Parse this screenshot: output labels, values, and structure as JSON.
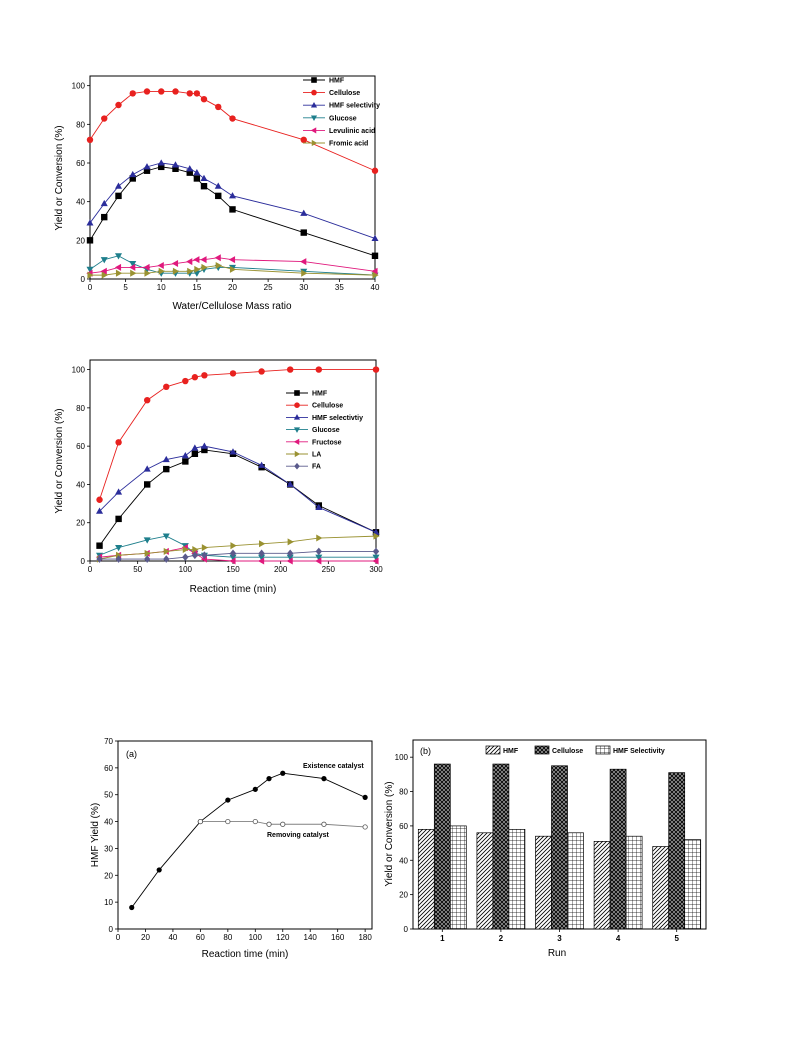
{
  "colors": {
    "HMF": "#000000",
    "Cellulose": "#e8211f",
    "HMF selectivity": "#2b2d9b",
    "Glucose": "#1e7f8c",
    "Levulinic acid": "#e0197d",
    "Fructose": "#e0197d",
    "Fromic acid": "#9a9232",
    "LA": "#9a9232",
    "FA": "#5a5a8c",
    "Removing catalyst": "#808080"
  },
  "chart_data": [
    {
      "type": "line",
      "xlabel": "Water/Cellulose Mass ratio",
      "ylabel": "Yield or Conversion (%)",
      "xlim": [
        0,
        40
      ],
      "ylim": [
        0,
        105
      ],
      "xticks": [
        "0",
        "5",
        "10",
        "15",
        "20",
        "25",
        "30",
        "35",
        "40"
      ],
      "yticks": [
        "0",
        "20",
        "40",
        "60",
        "80",
        "100"
      ],
      "legend_position": "top-right",
      "x": [
        0,
        2,
        4,
        6,
        8,
        10,
        12,
        14,
        15,
        16,
        18,
        20,
        30,
        40
      ],
      "series": [
        {
          "name": "HMF",
          "marker": "square",
          "values": [
            20,
            32,
            43,
            52,
            56,
            58,
            57,
            55,
            52,
            48,
            43,
            36,
            24,
            12
          ]
        },
        {
          "name": "Cellulose",
          "marker": "circle",
          "values": [
            72,
            83,
            90,
            96,
            97,
            97,
            97,
            96,
            96,
            93,
            89,
            83,
            72,
            56
          ]
        },
        {
          "name": "HMF selectivity",
          "marker": "triangle-up",
          "values": [
            29,
            39,
            48,
            54,
            58,
            60,
            59,
            57,
            55,
            52,
            48,
            43,
            34,
            21
          ]
        },
        {
          "name": "Glucose",
          "marker": "triangle-down",
          "values": [
            5,
            10,
            12,
            8,
            5,
            3,
            3,
            3,
            3,
            5,
            6,
            6,
            4,
            2
          ]
        },
        {
          "name": "Levulinic acid",
          "marker": "triangle-left",
          "values": [
            3,
            4,
            6,
            6,
            6,
            7,
            8,
            9,
            10,
            10,
            11,
            10,
            9,
            4
          ]
        },
        {
          "name": "Fromic acid",
          "marker": "triangle-right",
          "values": [
            2,
            2,
            3,
            3,
            3,
            4,
            4,
            4,
            5,
            6,
            7,
            5,
            3,
            2
          ]
        }
      ]
    },
    {
      "type": "line",
      "xlabel": "Reaction time (min)",
      "ylabel": "Yield or Conversion (%)",
      "xlim": [
        0,
        300
      ],
      "ylim": [
        0,
        105
      ],
      "xticks": [
        "0",
        "50",
        "100",
        "150",
        "200",
        "250",
        "300"
      ],
      "yticks": [
        "0",
        "20",
        "40",
        "60",
        "80",
        "100"
      ],
      "legend_position": "right",
      "x": [
        10,
        30,
        60,
        80,
        100,
        110,
        120,
        150,
        180,
        210,
        240,
        300
      ],
      "series": [
        {
          "name": "HMF",
          "marker": "square",
          "values": [
            8,
            22,
            40,
            48,
            52,
            56,
            58,
            56,
            49,
            40,
            29,
            15
          ]
        },
        {
          "name": "Cellulose",
          "marker": "circle",
          "values": [
            32,
            62,
            84,
            91,
            94,
            96,
            97,
            98,
            99,
            100,
            100,
            100
          ]
        },
        {
          "name": "HMF selectivtiy",
          "marker": "triangle-up",
          "values": [
            26,
            36,
            48,
            53,
            55,
            59,
            60,
            57,
            50,
            40,
            28,
            15
          ]
        },
        {
          "name": "Glucose",
          "marker": "triangle-down",
          "values": [
            3,
            7,
            11,
            13,
            8,
            4,
            3,
            2,
            2,
            2,
            2,
            2
          ]
        },
        {
          "name": "Fructose",
          "marker": "triangle-left",
          "values": [
            2,
            3,
            4,
            5,
            7,
            4,
            1,
            0,
            0,
            0,
            0,
            0
          ]
        },
        {
          "name": "LA",
          "marker": "triangle-right",
          "values": [
            1,
            3,
            4,
            5,
            6,
            6,
            7,
            8,
            9,
            10,
            12,
            13
          ]
        },
        {
          "name": "FA",
          "marker": "diamond",
          "values": [
            1,
            1,
            1,
            1,
            2,
            3,
            3,
            4,
            4,
            4,
            5,
            5
          ]
        }
      ]
    },
    {
      "type": "line",
      "panel_label": "(a)",
      "xlabel": "Reaction time (min)",
      "ylabel": "HMF Yield (%)",
      "xlim": [
        0,
        185
      ],
      "ylim": [
        0,
        70
      ],
      "xticks": [
        "0",
        "20",
        "40",
        "60",
        "80",
        "100",
        "120",
        "140",
        "160",
        "180"
      ],
      "yticks": [
        "0",
        "10",
        "20",
        "30",
        "40",
        "50",
        "60",
        "70"
      ],
      "series": [
        {
          "name": "Existence catalyst",
          "marker": "filled-circle",
          "x": [
            10,
            30,
            60,
            80,
            100,
            110,
            120,
            150,
            180
          ],
          "values": [
            8,
            22,
            40,
            48,
            52,
            56,
            58,
            56,
            49
          ]
        },
        {
          "name": "Removing catalyst",
          "marker": "open-circle",
          "x": [
            60,
            80,
            100,
            110,
            120,
            150,
            180
          ],
          "values": [
            40,
            40,
            40,
            39,
            39,
            39,
            38
          ]
        }
      ],
      "annotations": [
        "Existence catalyst",
        "Removing catalyst"
      ]
    },
    {
      "type": "bar",
      "panel_label": "(b)",
      "xlabel": "Run",
      "ylabel": "Yield or Conversion (%)",
      "ylim": [
        0,
        110
      ],
      "yticks": [
        "0",
        "20",
        "40",
        "60",
        "80",
        "100"
      ],
      "categories": [
        "1",
        "2",
        "3",
        "4",
        "5"
      ],
      "legend_position": "top",
      "series": [
        {
          "name": "HMF",
          "pattern": "diagonal",
          "values": [
            58,
            56,
            54,
            51,
            48
          ]
        },
        {
          "name": "Cellulose",
          "pattern": "crosshatch",
          "values": [
            96,
            96,
            95,
            93,
            91
          ]
        },
        {
          "name": "HMF Selectivity",
          "pattern": "grid",
          "values": [
            60,
            58,
            56,
            54,
            52
          ]
        }
      ]
    }
  ]
}
